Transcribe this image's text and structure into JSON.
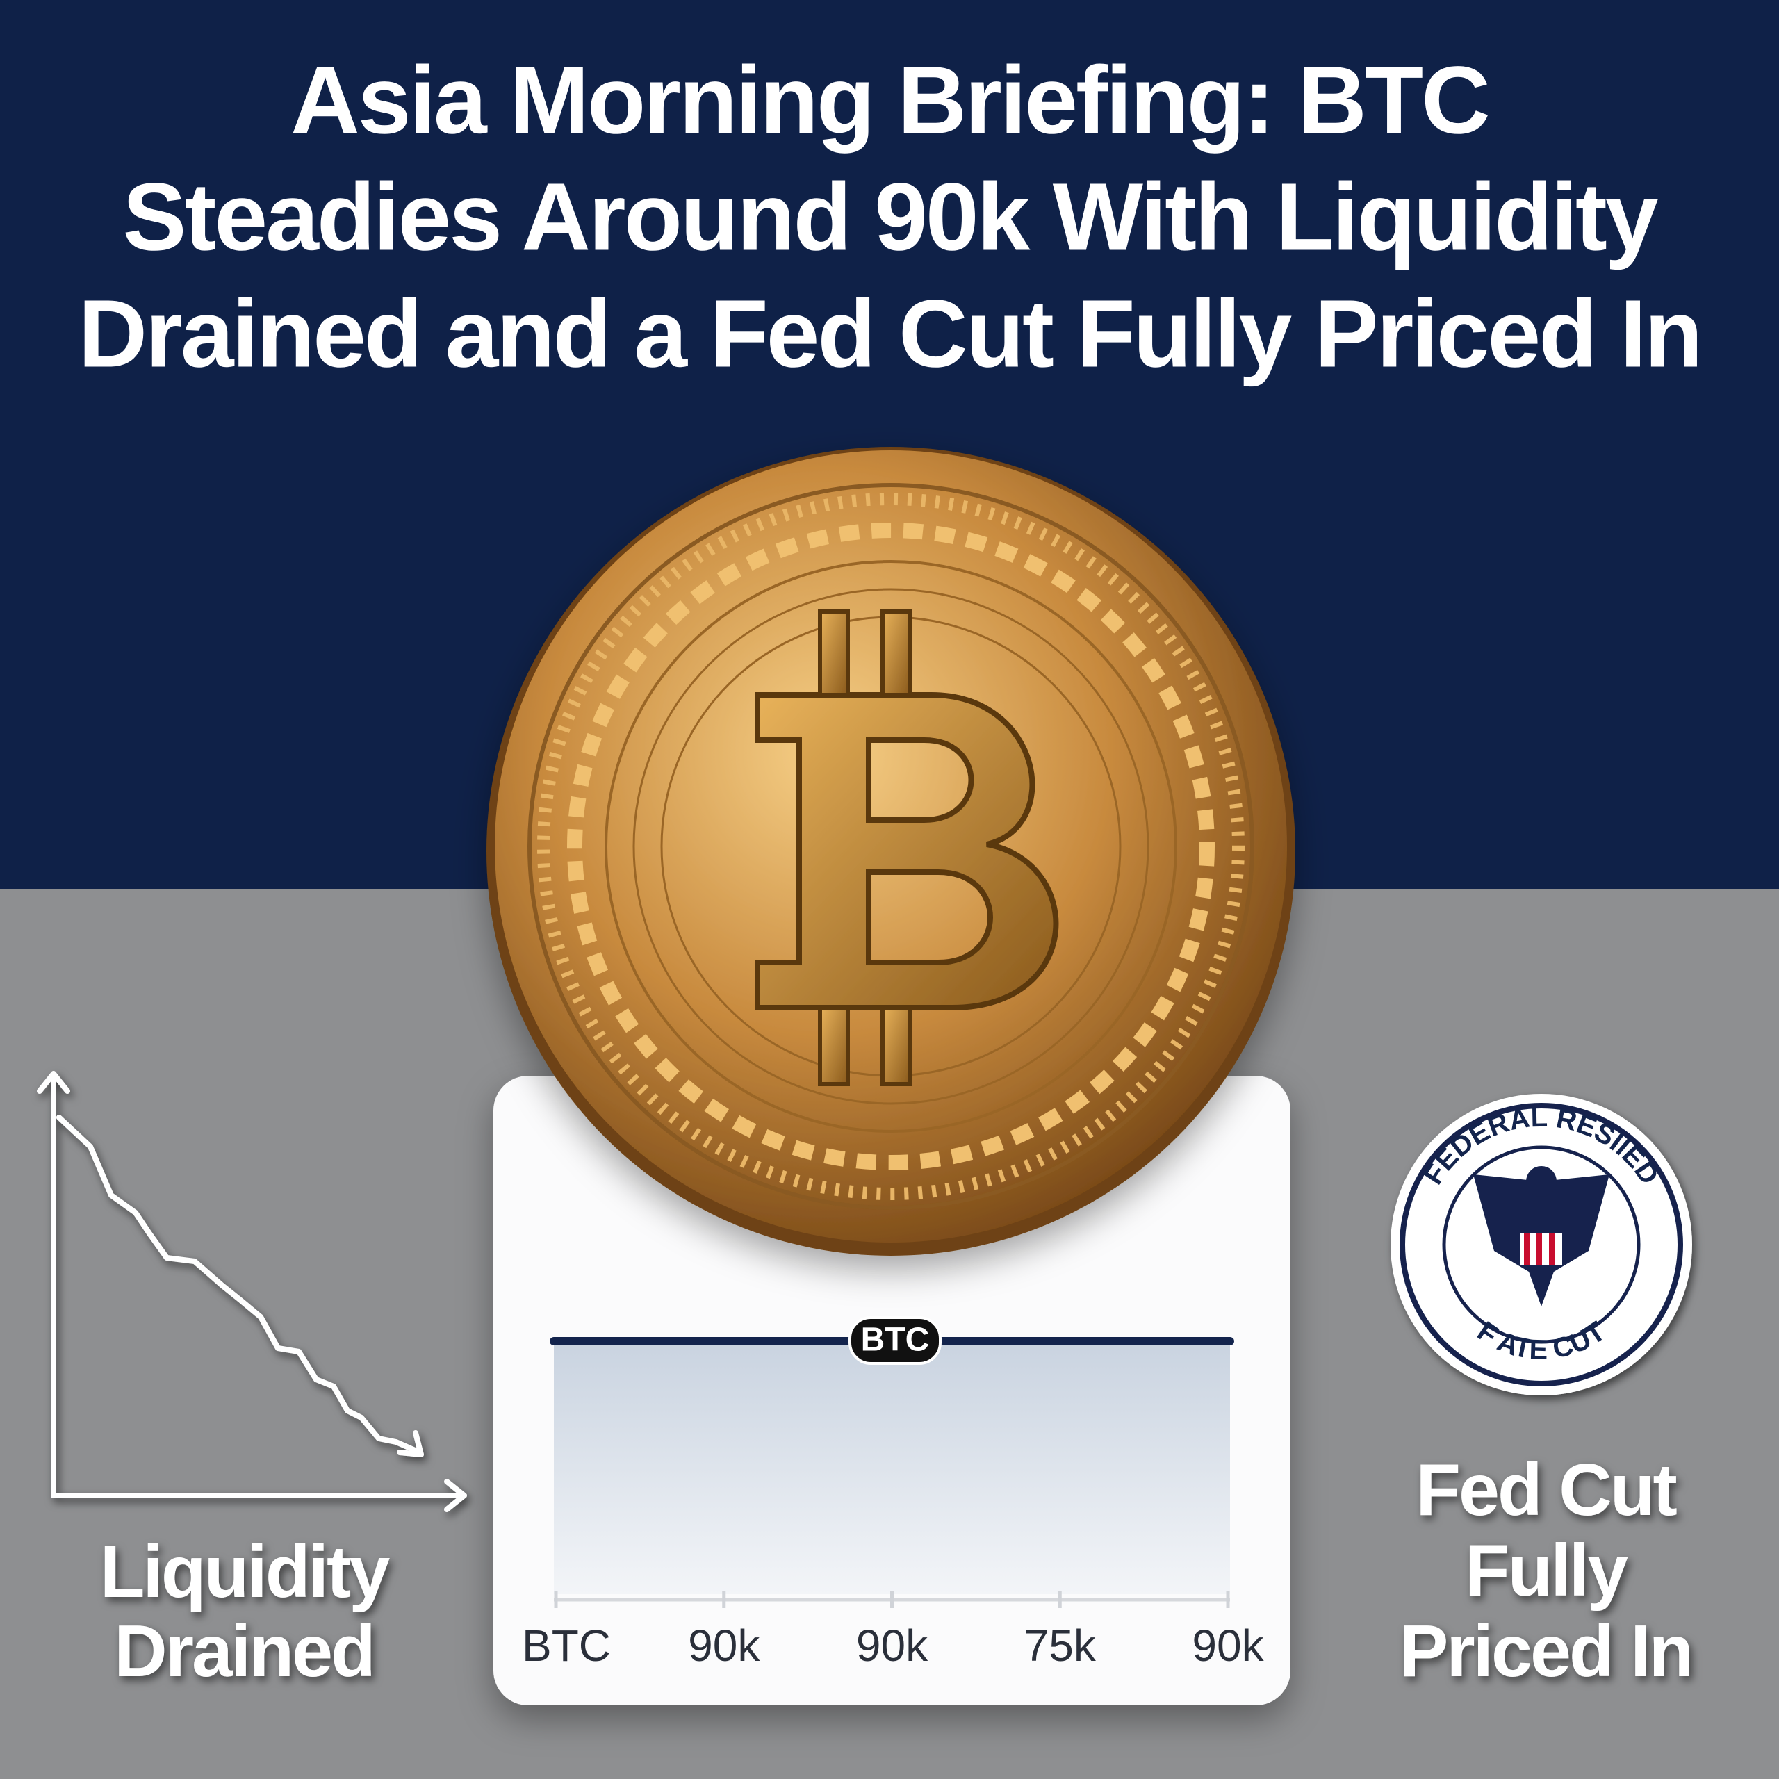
{
  "header": {
    "title_lines": [
      "Asia Morning Briefing: BTC",
      "Steadies Around 90k With Liquidity",
      "Drained and a Fed Cut Fully Priced In"
    ]
  },
  "left_panel": {
    "label_lines": [
      "Liquidity",
      "Drained"
    ]
  },
  "card": {
    "badge": "BTC",
    "axis_labels": [
      "BTC",
      "90k",
      "90k",
      "75k",
      "90k"
    ]
  },
  "seal": {
    "top_text": "FEDERAL RESIIED",
    "bottom_text": "F ATE CUT"
  },
  "right_panel": {
    "label_lines": [
      "Fed Cut",
      "Fully",
      "Priced In"
    ]
  }
}
